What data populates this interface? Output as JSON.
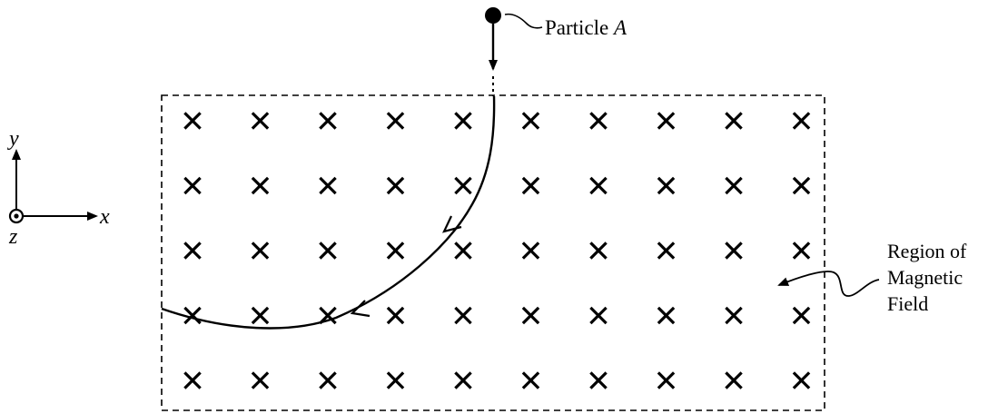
{
  "axes": {
    "x_label": "x",
    "y_label": "y",
    "z_label": "z",
    "z_direction": "out-of-page"
  },
  "particle": {
    "label_main": "Particle",
    "label_italic": "A",
    "motion": "downward into field, curves left"
  },
  "field_region": {
    "label_lines": [
      "Region of",
      "Magnetic",
      "Field"
    ],
    "field_direction": "into-page",
    "cross_rows": 5,
    "cross_cols": 10
  },
  "colors": {
    "ink": "#000000",
    "background": "#ffffff"
  }
}
